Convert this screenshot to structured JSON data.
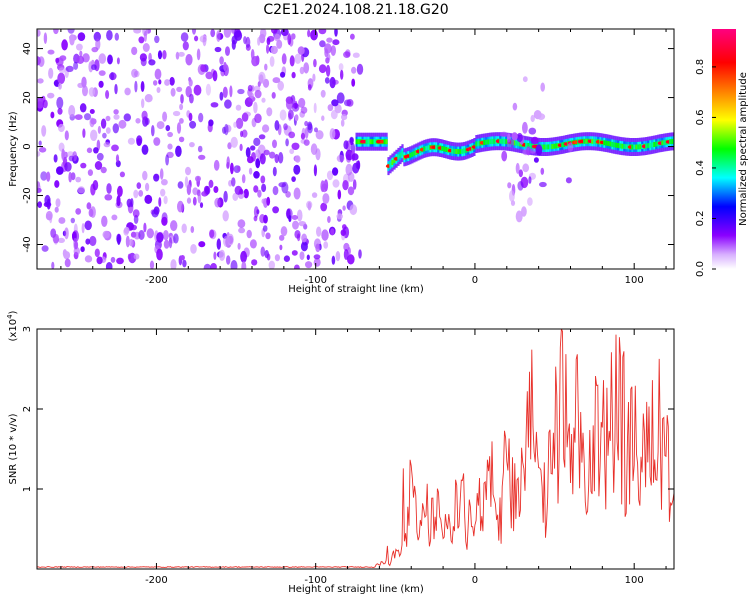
{
  "figure_title": "C2E1.2024.108.21.18.G20",
  "chart_data": [
    {
      "type": "heatmap",
      "xlabel": "Height of straight line (km)",
      "ylabel": "Frequency (Hz)",
      "xlim": [
        -275,
        125
      ],
      "ylim": [
        -50,
        48
      ],
      "x_ticks": [
        -200,
        -100,
        0,
        100
      ],
      "x_tick_labels": [
        "-200",
        "-100",
        "0",
        "100"
      ],
      "y_ticks": [
        -40,
        -20,
        0,
        20,
        40
      ],
      "y_tick_labels": [
        "-40",
        "-20",
        "0",
        "20",
        "40"
      ],
      "colorbar": {
        "label": "Normalized spectral amplitude",
        "range": [
          0,
          0.95
        ],
        "ticks": [
          0.0,
          0.2,
          0.4,
          0.6,
          0.8
        ],
        "tick_labels": [
          "0.0",
          "0.2",
          "0.4",
          "0.6",
          "0.8"
        ],
        "colors": [
          "#ffffff",
          "#8a00ff",
          "#0000ff",
          "#00ffff",
          "#00ff00",
          "#ffff00",
          "#ff8000",
          "#ff0000",
          "#ff0080"
        ]
      },
      "regions": [
        {
          "x": [
            -275,
            -72
          ],
          "freq": [
            -50,
            48
          ],
          "amplitude": 0.15,
          "pattern": "noise"
        },
        {
          "x": [
            -75,
            -55
          ],
          "freq_center": 2,
          "amplitude": 0.5,
          "pattern": "band"
        },
        {
          "x": [
            -55,
            -45
          ],
          "freq_center": -8,
          "amplitude": 0.5,
          "pattern": "band"
        },
        {
          "x": [
            -45,
            125
          ],
          "freq_center": 0,
          "amplitude": 0.6,
          "pattern": "band"
        },
        {
          "x": [
            18,
            43
          ],
          "freq": [
            -38,
            38
          ],
          "amplitude": 0.15,
          "pattern": "burst"
        },
        {
          "x": [
            58,
            60
          ],
          "freq": [
            -28,
            28
          ],
          "amplitude": 0.08,
          "pattern": "burst"
        }
      ]
    },
    {
      "type": "line",
      "xlabel": "Height of straight line (km)",
      "ylabel": "SNR (10 * v/v)",
      "y_multiplier_label": "(x10",
      "y_multiplier_exp": "4",
      "y_multiplier_close": ")",
      "xlim": [
        -275,
        125
      ],
      "ylim": [
        0,
        3
      ],
      "x_ticks": [
        -200,
        -100,
        0,
        100
      ],
      "x_tick_labels": [
        "-200",
        "-100",
        "0",
        "100"
      ],
      "y_ticks": [
        1,
        2,
        3
      ],
      "y_tick_labels": [
        "1",
        "2",
        "3"
      ],
      "series": [
        {
          "color": "#e8302a",
          "x": [
            -275,
            -100,
            -65,
            -55,
            -45,
            -40,
            -35,
            -30,
            -25,
            -20,
            -15,
            -10,
            -5,
            0,
            5,
            10,
            15,
            20,
            25,
            30,
            35,
            40,
            45,
            50,
            55,
            60,
            65,
            70,
            75,
            80,
            85,
            90,
            95,
            100,
            105,
            110,
            115,
            120,
            125
          ],
          "y": [
            0.02,
            0.02,
            0.03,
            0.12,
            0.3,
            1.3,
            0.6,
            1.0,
            0.7,
            1.1,
            0.5,
            1.2,
            0.8,
            1.45,
            0.9,
            1.5,
            0.8,
            1.75,
            1.1,
            1.4,
            2.6,
            1.3,
            1.1,
            2.35,
            3.0,
            1.6,
            2.4,
            1.3,
            1.9,
            2.5,
            1.5,
            2.95,
            1.8,
            2.45,
            1.5,
            2.3,
            1.7,
            2.65,
            0.95
          ]
        }
      ]
    }
  ]
}
